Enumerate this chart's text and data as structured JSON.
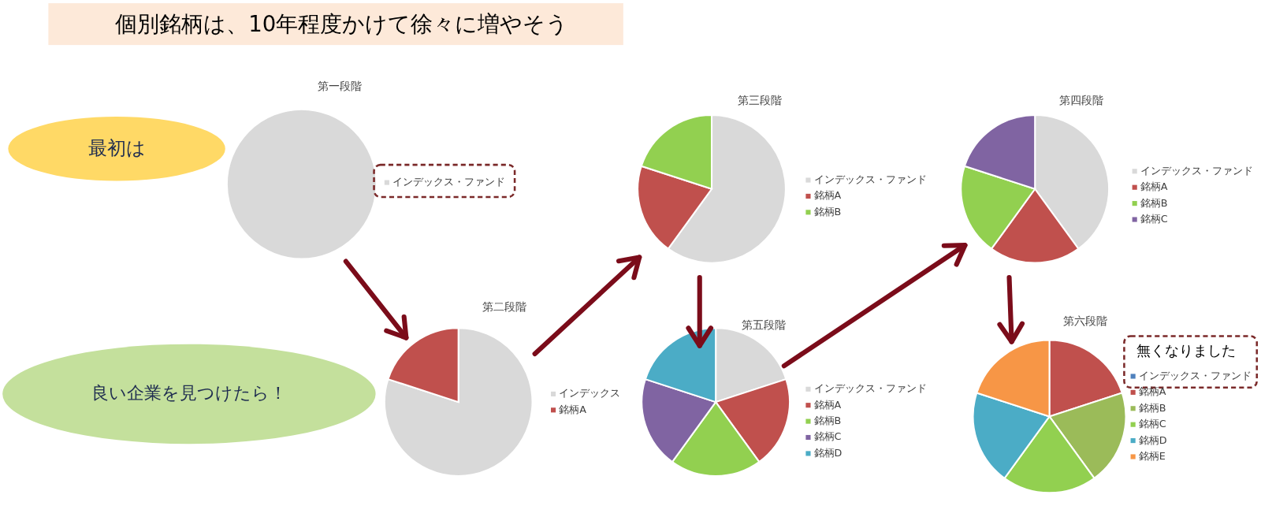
{
  "chart_data": [
    {
      "type": "other",
      "title": "個別銘柄は、10年程度かけて徐々に増やそう",
      "annotations": [
        "最初は",
        "良い企業を見つけたら！"
      ]
    },
    {
      "type": "pie",
      "title": "第一段階",
      "categories": [
        "インデックス・ファンド"
      ],
      "values": [
        100
      ],
      "colors": [
        "#d9d9d9"
      ],
      "legend": "right"
    },
    {
      "type": "pie",
      "title": "第二段階",
      "categories": [
        "インデックス",
        "銘柄A"
      ],
      "values": [
        80,
        20
      ],
      "colors": [
        "#d9d9d9",
        "#c0504d"
      ],
      "legend": "right"
    },
    {
      "type": "pie",
      "title": "第三段階",
      "categories": [
        "インデックス・ファンド",
        "銘柄A",
        "銘柄B"
      ],
      "values": [
        60,
        20,
        20
      ],
      "colors": [
        "#d9d9d9",
        "#c0504d",
        "#92d050"
      ],
      "legend": "right"
    },
    {
      "type": "pie",
      "title": "第四段階",
      "categories": [
        "インデックス・ファンド",
        "銘柄A",
        "銘柄B",
        "銘柄C"
      ],
      "values": [
        40,
        20,
        20,
        20
      ],
      "colors": [
        "#d9d9d9",
        "#c0504d",
        "#92d050",
        "#8064a2"
      ],
      "legend": "right"
    },
    {
      "type": "pie",
      "title": "第五段階",
      "categories": [
        "インデックス・ファンド",
        "銘柄A",
        "銘柄B",
        "銘柄C",
        "銘柄D"
      ],
      "values": [
        20,
        20,
        20,
        20,
        20
      ],
      "colors": [
        "#d9d9d9",
        "#c0504d",
        "#92d050",
        "#8064a2",
        "#4bacc6"
      ],
      "legend": "right"
    },
    {
      "type": "pie",
      "title": "第六段階",
      "categories": [
        "インデックス・ファンド",
        "銘柄A",
        "銘柄B",
        "銘柄C",
        "銘柄D",
        "銘柄E"
      ],
      "values": [
        0,
        20,
        20,
        20,
        20,
        20
      ],
      "colors": [
        "#4f81bd",
        "#c0504d",
        "#9bbb59",
        "#92d050",
        "#4bacc6",
        "#f79646"
      ],
      "legend": "right",
      "annotations": [
        "無くなりました"
      ]
    }
  ]
}
